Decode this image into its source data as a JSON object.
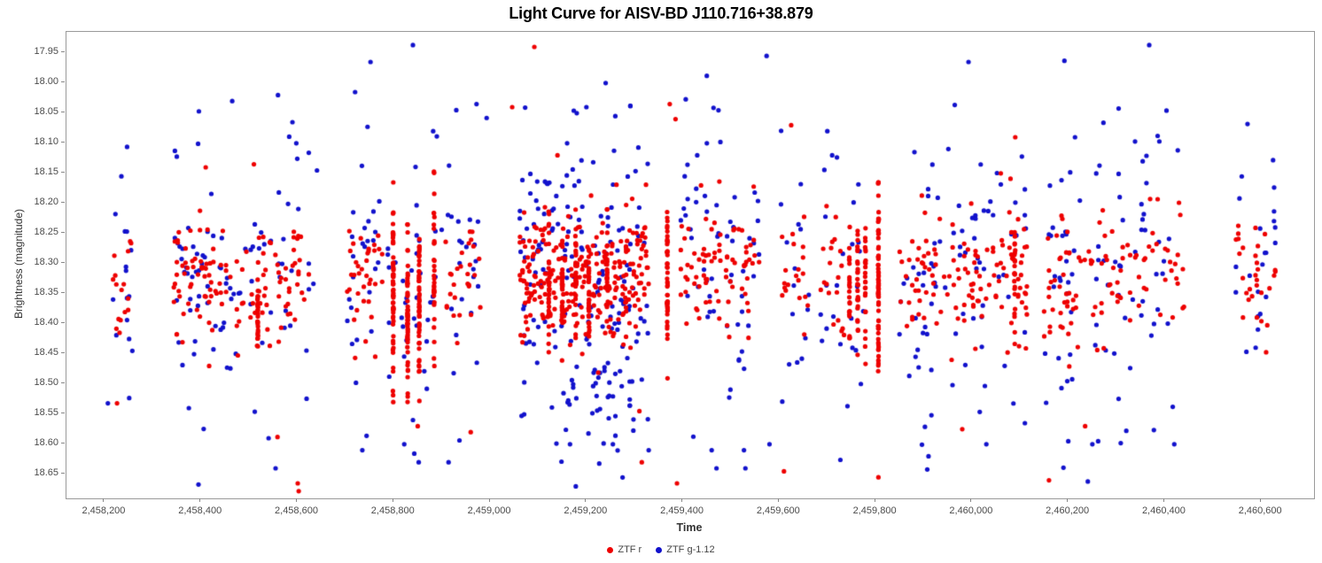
{
  "chart_data": {
    "type": "scatter",
    "title": "Light Curve for AISV-BD J110.716+38.879",
    "xlabel": "Time",
    "ylabel": "Brightness (magnitude)",
    "legend_position": "bottom-center",
    "grid": false,
    "x_range": [
      2458121,
      2460710
    ],
    "y_range": [
      17.915,
      18.69
    ],
    "y_inverted_magnitude_axis": true,
    "x_ticks": [
      {
        "v": 2458200,
        "label": "2,458,200"
      },
      {
        "v": 2458400,
        "label": "2,458,400"
      },
      {
        "v": 2458600,
        "label": "2,458,600"
      },
      {
        "v": 2458800,
        "label": "2,458,800"
      },
      {
        "v": 2459000,
        "label": "2,459,000"
      },
      {
        "v": 2459200,
        "label": "2,459,200"
      },
      {
        "v": 2459400,
        "label": "2,459,400"
      },
      {
        "v": 2459600,
        "label": "2,459,600"
      },
      {
        "v": 2459800,
        "label": "2,459,800"
      },
      {
        "v": 2460000,
        "label": "2,460,000"
      },
      {
        "v": 2460200,
        "label": "2,460,200"
      },
      {
        "v": 2460400,
        "label": "2,460,400"
      },
      {
        "v": 2460600,
        "label": "2,460,600"
      }
    ],
    "y_ticks": [
      {
        "v": 17.95,
        "label": "17.95"
      },
      {
        "v": 18.0,
        "label": "18.00"
      },
      {
        "v": 18.05,
        "label": "18.05"
      },
      {
        "v": 18.1,
        "label": "18.10"
      },
      {
        "v": 18.15,
        "label": "18.15"
      },
      {
        "v": 18.2,
        "label": "18.20"
      },
      {
        "v": 18.25,
        "label": "18.25"
      },
      {
        "v": 18.3,
        "label": "18.30"
      },
      {
        "v": 18.35,
        "label": "18.35"
      },
      {
        "v": 18.4,
        "label": "18.40"
      },
      {
        "v": 18.45,
        "label": "18.45"
      },
      {
        "v": 18.5,
        "label": "18.50"
      },
      {
        "v": 18.55,
        "label": "18.55"
      },
      {
        "v": 18.6,
        "label": "18.60"
      },
      {
        "v": 18.65,
        "label": "18.65"
      }
    ],
    "series": [
      {
        "key": "r",
        "name": "ZTF r",
        "color": "#ee0000"
      },
      {
        "key": "g",
        "name": "ZTF g-1.12",
        "color": "#1111cc"
      }
    ],
    "marker_radius": 2.6,
    "seed": 7,
    "clusters": [
      {
        "t0": 2458218,
        "t1": 2458264,
        "cad": 2.2,
        "nr": 16,
        "ng": 15,
        "r": [
          18.33,
          0.055
        ],
        "g": [
          18.34,
          0.115
        ]
      },
      {
        "t0": 2458338,
        "t1": 2458414,
        "cad": 2.0,
        "nr": 42,
        "ng": 34,
        "r": [
          18.325,
          0.05
        ],
        "g": [
          18.32,
          0.105
        ]
      },
      {
        "t0": 2458417,
        "t1": 2458464,
        "cad": 2.2,
        "nr": 22,
        "ng": 16,
        "r": [
          18.34,
          0.05
        ],
        "g": [
          18.35,
          0.1
        ]
      },
      {
        "t0": 2458468,
        "t1": 2458546,
        "cad": 2.2,
        "nr": 30,
        "ng": 18,
        "r": [
          18.335,
          0.05
        ],
        "g": [
          18.33,
          0.1
        ]
      },
      {
        "t0": 2458552,
        "t1": 2458642,
        "cad": 2.4,
        "nr": 32,
        "ng": 20,
        "r": [
          18.33,
          0.055
        ],
        "g": [
          18.33,
          0.115
        ]
      },
      {
        "t0": 2458704,
        "t1": 2458778,
        "cad": 2.0,
        "nr": 36,
        "ng": 26,
        "r": [
          18.32,
          0.055
        ],
        "g": [
          18.3,
          0.11
        ]
      },
      {
        "t0": 2458788,
        "t1": 2458902,
        "cad": 2.6,
        "nr": 0,
        "ng": 36,
        "r": [
          18.33,
          0.05
        ],
        "g": [
          18.36,
          0.12
        ]
      },
      {
        "t0": 2458908,
        "t1": 2458988,
        "cad": 2.4,
        "nr": 28,
        "ng": 22,
        "r": [
          18.33,
          0.05
        ],
        "g": [
          18.33,
          0.115
        ]
      },
      {
        "t0": 2459062,
        "t1": 2459212,
        "cad": 1.8,
        "nr": 150,
        "ng": 92,
        "r": [
          18.33,
          0.055
        ],
        "g": [
          18.33,
          0.115
        ]
      },
      {
        "t0": 2459214,
        "t1": 2459330,
        "cad": 1.8,
        "nr": 120,
        "ng": 72,
        "r": [
          18.325,
          0.06
        ],
        "g": [
          18.35,
          0.12
        ]
      },
      {
        "t0": 2459150,
        "t1": 2459300,
        "cad": 2.5,
        "nr": 0,
        "ng": 30,
        "r": [
          18.33,
          0.05
        ],
        "g": [
          18.5,
          0.055
        ]
      },
      {
        "t0": 2459396,
        "t1": 2459478,
        "cad": 2.0,
        "nr": 46,
        "ng": 30,
        "r": [
          18.3,
          0.06
        ],
        "g": [
          18.3,
          0.12
        ]
      },
      {
        "t0": 2459490,
        "t1": 2459562,
        "cad": 2.2,
        "nr": 34,
        "ng": 26,
        "r": [
          18.315,
          0.055
        ],
        "g": [
          18.32,
          0.115
        ]
      },
      {
        "t0": 2459604,
        "t1": 2459662,
        "cad": 2.4,
        "nr": 20,
        "ng": 16,
        "r": [
          18.32,
          0.05
        ],
        "g": [
          18.3,
          0.11
        ]
      },
      {
        "t0": 2459684,
        "t1": 2459736,
        "cad": 2.4,
        "nr": 20,
        "ng": 12,
        "r": [
          18.33,
          0.05
        ],
        "g": [
          18.34,
          0.11
        ]
      },
      {
        "t0": 2459742,
        "t1": 2459792,
        "cad": 2.5,
        "nr": 0,
        "ng": 12,
        "r": [
          18.33,
          0.05
        ],
        "g": [
          18.33,
          0.11
        ]
      },
      {
        "t0": 2459850,
        "t1": 2459988,
        "cad": 2.2,
        "nr": 55,
        "ng": 46,
        "r": [
          18.33,
          0.055
        ],
        "g": [
          18.33,
          0.12
        ]
      },
      {
        "t0": 2459992,
        "t1": 2460040,
        "cad": 2.2,
        "nr": 24,
        "ng": 18,
        "r": [
          18.33,
          0.05
        ],
        "g": [
          18.32,
          0.11
        ]
      },
      {
        "t0": 2460044,
        "t1": 2460114,
        "cad": 2.0,
        "nr": 44,
        "ng": 16,
        "r": [
          18.315,
          0.06
        ],
        "g": [
          18.3,
          0.11
        ]
      },
      {
        "t0": 2460150,
        "t1": 2460226,
        "cad": 2.0,
        "nr": 40,
        "ng": 28,
        "r": [
          18.33,
          0.055
        ],
        "g": [
          18.34,
          0.115
        ]
      },
      {
        "t0": 2460234,
        "t1": 2460314,
        "cad": 2.2,
        "nr": 30,
        "ng": 22,
        "r": [
          18.33,
          0.055
        ],
        "g": [
          18.35,
          0.12
        ]
      },
      {
        "t0": 2460318,
        "t1": 2460442,
        "cad": 2.6,
        "nr": 34,
        "ng": 30,
        "r": [
          18.32,
          0.055
        ],
        "g": [
          18.31,
          0.115
        ]
      },
      {
        "t0": 2460548,
        "t1": 2460634,
        "cad": 2.4,
        "nr": 30,
        "ng": 22,
        "r": [
          18.33,
          0.05
        ],
        "g": [
          18.33,
          0.105
        ]
      }
    ],
    "high_cadence_nights_r": [
      {
        "t": 2458518,
        "n": 26,
        "m": [
          18.37,
          0.035
        ],
        "clip": [
          18.29,
          18.45
        ]
      },
      {
        "t": 2458799,
        "n": 62,
        "m": [
          18.33,
          0.07
        ],
        "clip": [
          18.165,
          18.53
        ]
      },
      {
        "t": 2458829,
        "n": 55,
        "m": [
          18.375,
          0.06
        ],
        "clip": [
          18.235,
          18.56
        ]
      },
      {
        "t": 2458853,
        "n": 52,
        "m": [
          18.36,
          0.065
        ],
        "clip": [
          18.21,
          18.55
        ]
      },
      {
        "t": 2458884,
        "n": 34,
        "m": [
          18.3,
          0.075
        ],
        "clip": [
          18.12,
          18.47
        ]
      },
      {
        "t": 2459122,
        "n": 26,
        "m": [
          18.33,
          0.05
        ],
        "clip": [
          18.2,
          18.48
        ]
      },
      {
        "t": 2459150,
        "n": 30,
        "m": [
          18.345,
          0.05
        ],
        "clip": [
          18.21,
          18.48
        ]
      },
      {
        "t": 2459178,
        "n": 28,
        "m": [
          18.33,
          0.055
        ],
        "clip": [
          18.2,
          18.5
        ]
      },
      {
        "t": 2459205,
        "n": 30,
        "m": [
          18.35,
          0.05
        ],
        "clip": [
          18.22,
          18.5
        ]
      },
      {
        "t": 2459243,
        "n": 26,
        "m": [
          18.33,
          0.05
        ],
        "clip": [
          18.21,
          18.47
        ]
      },
      {
        "t": 2459368,
        "n": 46,
        "m": [
          18.33,
          0.065
        ],
        "clip": [
          18.18,
          18.52
        ]
      },
      {
        "t": 2459746,
        "n": 24,
        "m": [
          18.33,
          0.055
        ],
        "clip": [
          18.21,
          18.47
        ]
      },
      {
        "t": 2459763,
        "n": 28,
        "m": [
          18.34,
          0.05
        ],
        "clip": [
          18.22,
          18.48
        ]
      },
      {
        "t": 2459779,
        "n": 24,
        "m": [
          18.325,
          0.055
        ],
        "clip": [
          18.2,
          18.47
        ]
      },
      {
        "t": 2459806,
        "n": 68,
        "m": [
          18.32,
          0.085
        ],
        "clip": [
          18.165,
          18.625
        ]
      },
      {
        "t": 2460089,
        "n": 22,
        "m": [
          18.32,
          0.06
        ],
        "clip": [
          18.2,
          18.47
        ]
      }
    ],
    "outliers": {
      "r": [
        [
          2458226,
          18.532
        ],
        [
          2458410,
          18.14
        ],
        [
          2458510,
          18.135
        ],
        [
          2458559,
          18.588
        ],
        [
          2458601,
          18.665
        ],
        [
          2458603,
          18.678
        ],
        [
          2458850,
          18.57
        ],
        [
          2458960,
          18.58
        ],
        [
          2459046,
          18.04
        ],
        [
          2459092,
          17.94
        ],
        [
          2459140,
          18.12
        ],
        [
          2459310,
          18.545
        ],
        [
          2459315,
          18.63
        ],
        [
          2459373,
          18.035
        ],
        [
          2459385,
          18.06
        ],
        [
          2459388,
          18.665
        ],
        [
          2459610,
          18.645
        ],
        [
          2459625,
          18.07
        ],
        [
          2459806,
          18.655
        ],
        [
          2459980,
          18.575
        ],
        [
          2460060,
          18.15
        ],
        [
          2460090,
          18.09
        ],
        [
          2460160,
          18.66
        ],
        [
          2460235,
          18.57
        ]
      ],
      "g": [
        [
          2458207,
          18.532
        ],
        [
          2458235,
          18.155
        ],
        [
          2458375,
          18.54
        ],
        [
          2458395,
          18.667
        ],
        [
          2458465,
          18.03
        ],
        [
          2458555,
          18.64
        ],
        [
          2458560,
          18.02
        ],
        [
          2458590,
          18.065
        ],
        [
          2458598,
          18.1
        ],
        [
          2458720,
          18.015
        ],
        [
          2458735,
          18.61
        ],
        [
          2458752,
          17.965
        ],
        [
          2458822,
          18.6
        ],
        [
          2458840,
          17.937
        ],
        [
          2458852,
          18.63
        ],
        [
          2458882,
          18.08
        ],
        [
          2458914,
          18.63
        ],
        [
          2458930,
          18.045
        ],
        [
          2458972,
          18.035
        ],
        [
          2458993,
          18.058
        ],
        [
          2459160,
          18.1
        ],
        [
          2459166,
          18.6
        ],
        [
          2459178,
          18.67
        ],
        [
          2459180,
          18.05
        ],
        [
          2459200,
          18.04
        ],
        [
          2459240,
          18.0
        ],
        [
          2459255,
          18.6
        ],
        [
          2459260,
          18.055
        ],
        [
          2459430,
          18.12
        ],
        [
          2459450,
          18.1
        ],
        [
          2459460,
          18.61
        ],
        [
          2459470,
          18.64
        ],
        [
          2459527,
          18.61
        ],
        [
          2459530,
          18.64
        ],
        [
          2459574,
          17.955
        ],
        [
          2459580,
          18.6
        ],
        [
          2459700,
          18.08
        ],
        [
          2459710,
          18.12
        ],
        [
          2459910,
          18.62
        ],
        [
          2459993,
          17.965
        ],
        [
          2460030,
          18.6
        ],
        [
          2460110,
          18.565
        ],
        [
          2460192,
          17.963
        ],
        [
          2460200,
          18.595
        ],
        [
          2460214,
          18.09
        ],
        [
          2460250,
          18.6
        ],
        [
          2460262,
          18.595
        ],
        [
          2460273,
          18.066
        ],
        [
          2460368,
          17.937
        ],
        [
          2460389,
          18.097
        ],
        [
          2460420,
          18.6
        ],
        [
          2460572,
          18.068
        ]
      ]
    },
    "colors": {
      "plot_border": "#9a9a9a",
      "tick_mark": "#888888",
      "tick_label": "#4a4a4a",
      "axis_title": "#333333",
      "title": "#000000",
      "background": "#ffffff"
    }
  }
}
